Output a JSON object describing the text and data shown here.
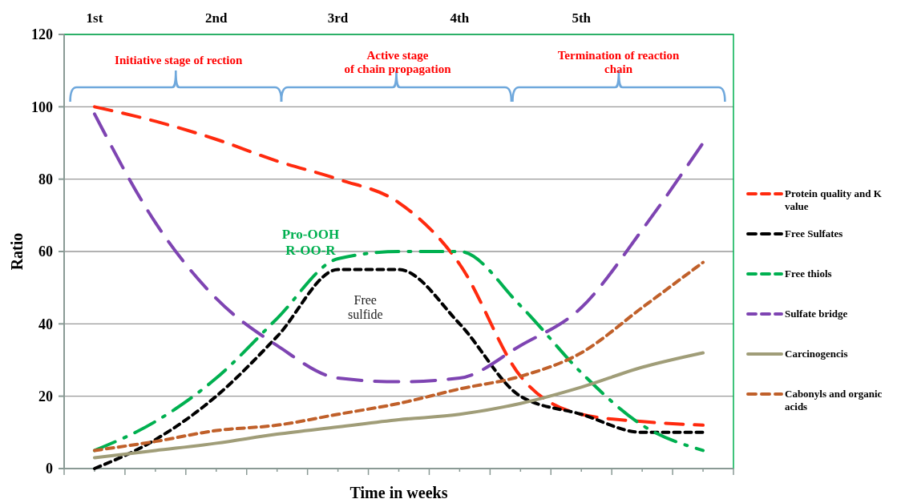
{
  "chart_data": {
    "type": "line",
    "xlabel": "Time in weeks",
    "ylabel": "Ratio",
    "categories": [
      "1st",
      null,
      "2nd",
      null,
      "3rd",
      null,
      "4th",
      null,
      "5th",
      null,
      null
    ],
    "ylim": [
      0,
      120
    ],
    "yticks": [
      0,
      20,
      40,
      60,
      80,
      100,
      120
    ],
    "grid": "y",
    "legend": "right",
    "marker": "none",
    "series": [
      {
        "name": "Protein quality and K value",
        "color": "#ff2a0e",
        "line_style": "dashed",
        "values": [
          100,
          96,
          91,
          85,
          80,
          73.5,
          56.5,
          25.5,
          15,
          13,
          12
        ]
      },
      {
        "name": "Free Sulfates",
        "color": "#000000",
        "line_style": "dashed",
        "values": [
          0,
          8,
          20,
          36.5,
          55,
          55,
          40,
          20,
          15,
          10,
          10
        ]
      },
      {
        "name": "Free thiols",
        "color": "#00b050",
        "line_style": "dashed",
        "values": [
          5,
          13,
          25,
          41.5,
          58,
          60,
          60,
          45,
          26.5,
          12,
          5
        ]
      },
      {
        "name": "Sulfate bridge",
        "color": "#7e44b2",
        "line_style": "dashed",
        "values": [
          98,
          68,
          47,
          34,
          25,
          24,
          25,
          34,
          44.5,
          66,
          90
        ]
      },
      {
        "name": "Carcinogencis",
        "color": "#a09d78",
        "line_style": "solid",
        "values": [
          3,
          5,
          7,
          9.5,
          11.5,
          13.5,
          15,
          18,
          22.5,
          28,
          32
        ]
      },
      {
        "name": "Cabonyls and organic acids",
        "color": "#c0602a",
        "line_style": "dashed",
        "values": [
          5,
          7.5,
          10.5,
          12,
          15,
          18,
          22,
          25.5,
          32,
          44.5,
          57
        ]
      }
    ],
    "annotations": [
      "Initiative stage of rection",
      "Active stage\nof chain propagation",
      "Termination  of reaction\nchain",
      "Pro-OOH\nR-OO-R",
      "Free\nsulfide"
    ]
  }
}
